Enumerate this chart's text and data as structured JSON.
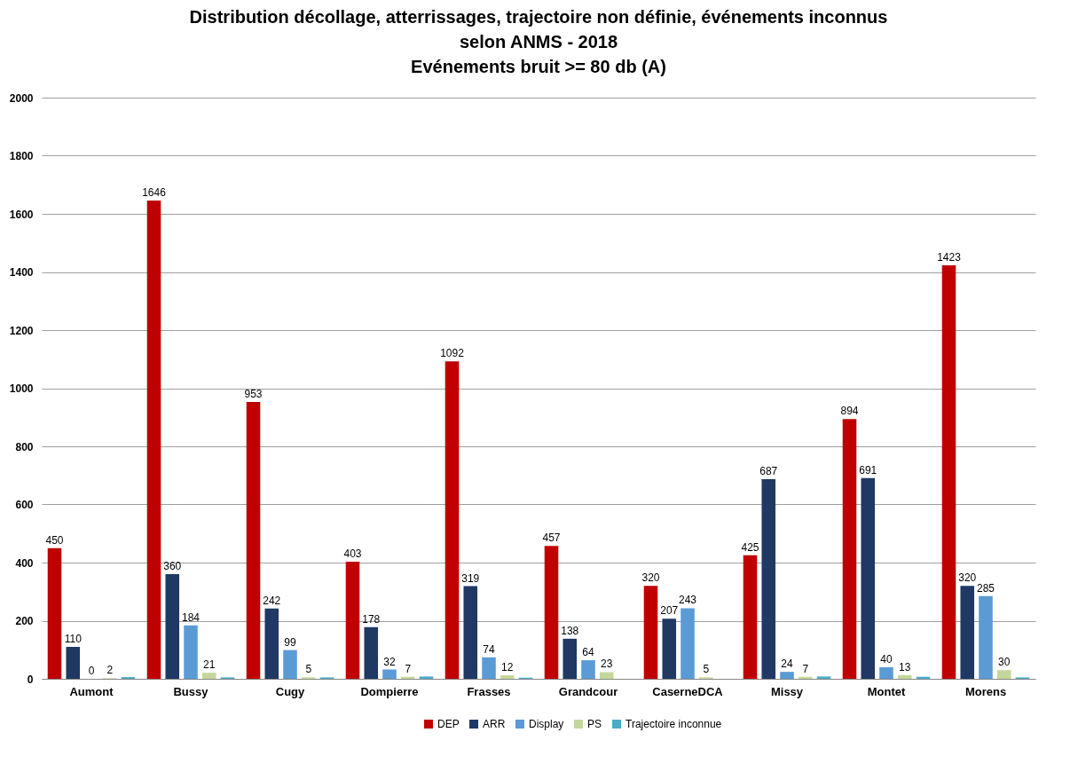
{
  "chart_data": {
    "type": "bar",
    "title": "Distribution décollage, atterrissages, trajectoire non définie, événements inconnus\nselon ANMS - 2018\nEvénements bruit >= 80 db (A)",
    "categories": [
      "Aumont",
      "Bussy",
      "Cugy",
      "Dompierre",
      "Frasses",
      "Grandcour",
      "CaserneDCA",
      "Missy",
      "Montet",
      "Morens"
    ],
    "series": [
      {
        "name": "DEP",
        "color": "#c00000",
        "values": [
          450,
          1646,
          953,
          403,
          1092,
          457,
          320,
          425,
          894,
          1423
        ],
        "value_labels": [
          "450",
          "1646",
          "953",
          "403",
          "1092",
          "457",
          "320",
          "425",
          "894",
          "1423"
        ]
      },
      {
        "name": "ARR",
        "color": "#1f3864",
        "values": [
          110,
          360,
          242,
          178,
          319,
          138,
          207,
          687,
          691,
          320
        ],
        "value_labels": [
          "110",
          "360",
          "242",
          "178",
          "319",
          "138",
          "207",
          "687",
          "691",
          "320"
        ]
      },
      {
        "name": "Display",
        "color": "#5b9bd5",
        "values": [
          0,
          184,
          99,
          32,
          74,
          64,
          243,
          24,
          40,
          285
        ],
        "value_labels": [
          "0",
          "184",
          "99",
          "32",
          "74",
          "64",
          "243",
          "24",
          "40",
          "285"
        ]
      },
      {
        "name": "PS",
        "color": "#c4d79b",
        "values": [
          2,
          21,
          5,
          7,
          12,
          23,
          5,
          7,
          13,
          30
        ],
        "value_labels": [
          "2",
          "21",
          "5",
          "7",
          "12",
          "23",
          "5",
          "7",
          "13",
          "30"
        ]
      },
      {
        "name": "Trajectoire inconnue",
        "color": "#4bacc6",
        "values": [
          6,
          5,
          5,
          8,
          4,
          null,
          null,
          8,
          7,
          5
        ]
      }
    ],
    "ylim": [
      0,
      2000
    ],
    "yticks": [
      0,
      200,
      400,
      600,
      800,
      1000,
      1200,
      1400,
      1600,
      1800,
      2000
    ],
    "grid": "y",
    "legend": "bottom"
  }
}
